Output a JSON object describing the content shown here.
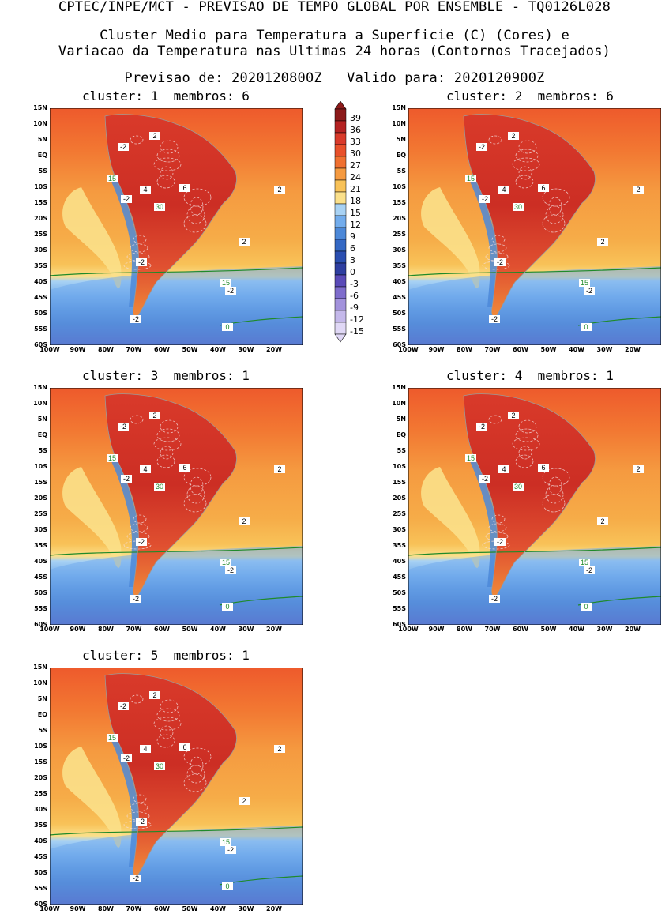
{
  "header": {
    "line1": "CPTEC/INPE/MCT - PREVISAO DE TEMPO GLOBAL POR ENSEMBLE - TQ0126L028",
    "line2": "Cluster Medio para Temperatura a Superficie (C) (Cores) e",
    "line3": "Variacao da Temperatura nas Ultimas 24 horas (Contornos Tracejados)",
    "line4": "Previsao de: 2020120800Z   Valido para: 2020120900Z"
  },
  "panels": [
    {
      "title": "cluster: 1  membros: 6"
    },
    {
      "title": "cluster: 2  membros: 6"
    },
    {
      "title": "cluster: 3  membros: 1"
    },
    {
      "title": "cluster: 4  membros: 1"
    },
    {
      "title": "cluster: 5  membros: 1"
    }
  ],
  "lat_labels": [
    "15N",
    "10N",
    "5N",
    "EQ",
    "5S",
    "10S",
    "15S",
    "20S",
    "25S",
    "30S",
    "35S",
    "40S",
    "45S",
    "50S",
    "55S",
    "60S"
  ],
  "lon_labels": [
    "100W",
    "90W",
    "80W",
    "70W",
    "60W",
    "50W",
    "40W",
    "30W",
    "20W"
  ],
  "colorbar": {
    "ticks": [
      "39",
      "36",
      "33",
      "30",
      "27",
      "24",
      "21",
      "18",
      "15",
      "12",
      "9",
      "6",
      "3",
      "0",
      "-3",
      "-6",
      "-9",
      "-12",
      "-15"
    ],
    "colors": [
      "#8c1a1a",
      "#b52222",
      "#d93a2a",
      "#e8502a",
      "#f07030",
      "#f59a40",
      "#f8c258",
      "#fbe08a",
      "#a8d2f4",
      "#72acec",
      "#4c88d8",
      "#3468c4",
      "#2a4eb0",
      "#2e3ea0",
      "#5a4ab8",
      "#7e6ccc",
      "#a292dc",
      "#c4b8ea",
      "#e0d8f6"
    ]
  },
  "contour_labels": {
    "green": [
      "15",
      "30",
      "0"
    ],
    "white_boxed": [
      "-2",
      "2",
      "4",
      "6"
    ]
  }
}
